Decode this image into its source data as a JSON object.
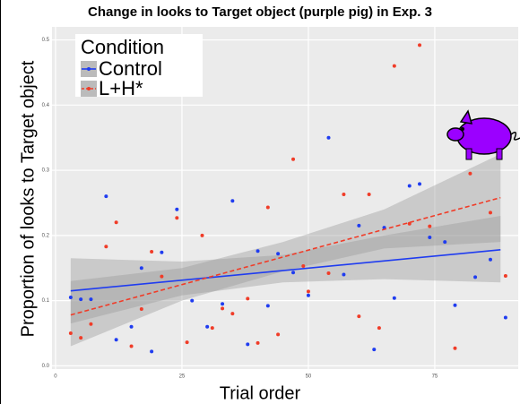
{
  "chart_data": {
    "type": "scatter",
    "title": "Change in looks to Target object (purple pig) in Exp. 3",
    "x_label": "Trial order",
    "y_label": "Proportion of looks to Target object",
    "legend_title": "Condition",
    "legend_position": "top-left",
    "grid": true,
    "xlim": [
      -0.7,
      91.5
    ],
    "xticks": [
      0,
      25,
      50,
      75
    ],
    "ylim": [
      -0.005,
      0.52
    ],
    "yticks": [
      {
        "value": 0,
        "label": "0.0"
      },
      0.1,
      0.2,
      0.3,
      0.4,
      0.5
    ],
    "series": [
      {
        "name": "Control",
        "color": "#1f3cf0",
        "linestyle": "solid",
        "x": [
          3,
          5,
          7,
          10,
          12,
          15,
          17,
          19,
          21,
          24,
          27,
          30,
          33,
          35,
          38,
          40,
          42,
          44,
          47,
          50,
          54,
          57,
          60,
          63,
          65,
          67,
          70,
          72,
          74,
          77,
          79,
          83,
          86,
          89
        ],
        "values": [
          0.105,
          0.102,
          0.102,
          0.26,
          0.04,
          0.06,
          0.15,
          0.022,
          0.174,
          0.24,
          0.1,
          0.06,
          0.095,
          0.253,
          0.033,
          0.176,
          0.092,
          0.172,
          0.143,
          0.108,
          0.35,
          0.14,
          0.215,
          0.025,
          0.212,
          0.104,
          0.276,
          0.279,
          0.197,
          0.19,
          0.093,
          0.136,
          0.163,
          0.074
        ],
        "fit": {
          "x": [
            3,
            88
          ],
          "values": [
            0.115,
            0.178
          ]
        },
        "band": {
          "x": [
            3,
            25,
            45,
            65,
            88
          ],
          "lower": [
            0.065,
            0.108,
            0.128,
            0.133,
            0.128
          ],
          "upper": [
            0.165,
            0.16,
            0.17,
            0.2,
            0.23
          ]
        }
      },
      {
        "name": "L+H*",
        "color": "#f03c28",
        "linestyle": "dashed",
        "x": [
          3,
          5,
          7,
          10,
          12,
          15,
          17,
          19,
          21,
          24,
          26,
          29,
          31,
          33,
          35,
          38,
          40,
          42,
          44,
          47,
          49,
          50,
          54,
          57,
          60,
          62,
          64,
          67,
          70,
          72,
          74,
          79,
          82,
          86,
          89
        ],
        "values": [
          0.05,
          0.043,
          0.064,
          0.183,
          0.22,
          0.03,
          0.087,
          0.175,
          0.137,
          0.227,
          0.036,
          0.2,
          0.058,
          0.088,
          0.08,
          0.103,
          0.035,
          0.243,
          0.048,
          0.317,
          0.153,
          0.114,
          0.142,
          0.263,
          0.076,
          0.263,
          0.058,
          0.46,
          0.218,
          0.492,
          0.214,
          0.027,
          0.295,
          0.235,
          0.138
        ],
        "fit": {
          "x": [
            3,
            88
          ],
          "values": [
            0.078,
            0.258
          ]
        },
        "band": {
          "x": [
            3,
            25,
            45,
            65,
            88
          ],
          "lower": [
            0.03,
            0.1,
            0.145,
            0.18,
            0.19
          ],
          "upper": [
            0.13,
            0.15,
            0.19,
            0.24,
            0.325
          ]
        }
      }
    ]
  }
}
